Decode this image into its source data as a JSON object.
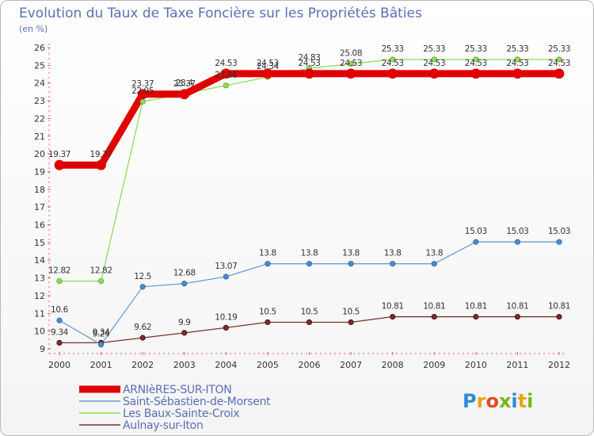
{
  "title": "Evolution du Taux de Taxe Foncière sur les Propriétés Bâties",
  "unit": "(en %)",
  "logo": {
    "letters": [
      "P",
      "r",
      "o",
      "x",
      "i",
      "t",
      "i"
    ],
    "colors": [
      "#2e8bd8",
      "#e8a317",
      "#e04a2a",
      "#7ab51d",
      "#2e8bd8",
      "#e8a317",
      "#7ab51d"
    ]
  },
  "chart_data": {
    "type": "line",
    "title": "Evolution du Taux de Taxe Foncière sur les Propriétés Bâties",
    "ylabel": "(en %)",
    "xlabel": "",
    "ylim": [
      9,
      26
    ],
    "yticks": [
      9,
      10,
      11,
      12,
      13,
      14,
      15,
      16,
      17,
      18,
      19,
      20,
      21,
      22,
      23,
      24,
      25,
      26
    ],
    "x": [
      "2000",
      "2001",
      "2002",
      "2003",
      "2004",
      "2005",
      "2006",
      "2007",
      "2008",
      "2009",
      "2010",
      "2011",
      "2012"
    ],
    "grid": false,
    "legend_position": "bottom-left",
    "series": [
      {
        "name": "ARNIèRES-SUR-ITON",
        "color": "#e00000",
        "values": [
          19.37,
          19.37,
          23.37,
          23.37,
          24.53,
          24.53,
          24.53,
          24.53,
          24.53,
          24.53,
          24.53,
          24.53,
          24.53
        ],
        "labels": [
          "19.37",
          "19.37",
          "23.37",
          "23.37",
          "24.53",
          "24.53",
          "24.53",
          "24.53",
          "24.53",
          "24.53",
          "24.53",
          "24.53",
          "24.53"
        ]
      },
      {
        "name": "Saint-Sébastien-de-Morsent",
        "color": "#6a9fd6",
        "values": [
          10.6,
          9.24,
          12.5,
          12.68,
          13.07,
          13.8,
          13.8,
          13.8,
          13.8,
          13.8,
          15.03,
          15.03,
          15.03
        ],
        "labels": [
          "10.6",
          "9.24",
          "12.5",
          "12.68",
          "13.07",
          "13.8",
          "13.8",
          "13.8",
          "13.8",
          "13.8",
          "15.03",
          "15.03",
          "15.03"
        ]
      },
      {
        "name": "Les Baux-Sainte-Croix",
        "color": "#8fdc5c",
        "values": [
          12.82,
          12.82,
          22.95,
          23.4,
          23.86,
          24.34,
          24.83,
          25.08,
          25.33,
          25.33,
          25.33,
          25.33,
          25.33
        ],
        "labels": [
          "12.82",
          "12.82",
          "22.95",
          "23.4",
          "23.86",
          "24.34",
          "24.83",
          "25.08",
          "25.33",
          "25.33",
          "25.33",
          "25.33",
          "25.33"
        ]
      },
      {
        "name": "Aulnay-sur-Iton",
        "color": "#7a3030",
        "values": [
          9.34,
          9.34,
          9.62,
          9.9,
          10.19,
          10.5,
          10.5,
          10.5,
          10.81,
          10.81,
          10.81,
          10.81,
          10.81
        ],
        "labels": [
          "9.34",
          "9.34",
          "9.62",
          "9.9",
          "10.19",
          "10.5",
          "10.5",
          "10.5",
          "10.81",
          "10.81",
          "10.81",
          "10.81",
          "10.81"
        ]
      }
    ]
  }
}
